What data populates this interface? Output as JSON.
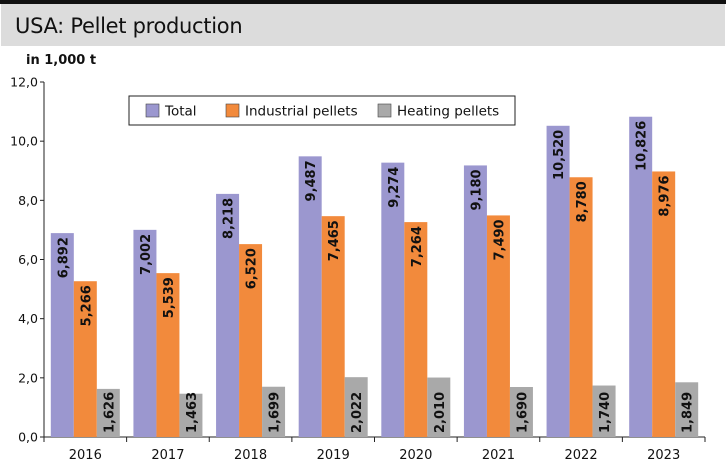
{
  "title": "USA: Pellet production",
  "unit_label": "in 1,000 t",
  "colors": {
    "total": "#9b97cf",
    "industrial": "#f28a3c",
    "heating": "#a9a9a9",
    "header_bg": "#dcdcdc"
  },
  "chart_data": {
    "type": "bar",
    "title": "USA: Pellet production",
    "ylabel": "in 1,000 t",
    "xlabel": "",
    "categories": [
      "2016",
      "2017",
      "2018",
      "2019",
      "2020",
      "2021",
      "2022",
      "2023"
    ],
    "series": [
      {
        "name": "Total",
        "values": [
          6.892,
          7.002,
          8.218,
          9.487,
          9.274,
          9.18,
          10.52,
          10.826
        ],
        "labels": [
          "6,892",
          "7,002",
          "8,218",
          "9,487",
          "9,274",
          "9,180",
          "10,520",
          "10,826"
        ]
      },
      {
        "name": "Industrial pellets",
        "values": [
          5.266,
          5.539,
          6.52,
          7.465,
          7.264,
          7.49,
          8.78,
          8.976
        ],
        "labels": [
          "5,266",
          "5,539",
          "6,520",
          "7,465",
          "7,264",
          "7,490",
          "8,780",
          "8,976"
        ]
      },
      {
        "name": "Heating pellets",
        "values": [
          1.626,
          1.463,
          1.699,
          2.022,
          2.01,
          1.69,
          1.74,
          1.849
        ],
        "labels": [
          "1,626",
          "1,463",
          "1,699",
          "2,022",
          "2,010",
          "1,690",
          "1,740",
          "1,849"
        ]
      }
    ],
    "yticks": [
      "0,0",
      "2,0",
      "4,0",
      "6,0",
      "8,0",
      "10,0",
      "12,0"
    ],
    "ylim": [
      0,
      12
    ],
    "legend": "top-center",
    "grid": false
  }
}
